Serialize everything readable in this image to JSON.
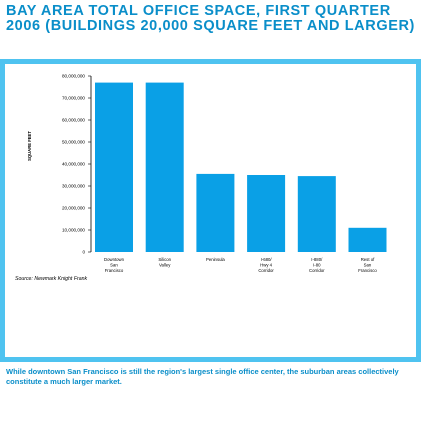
{
  "title": "BAY AREA TOTAL OFFICE SPACE, FIRST QUARTER 2006 (BUILDINGS 20,000 SQUARE FEET AND LARGER)",
  "caption": "While downtown San Francisco is still the region's largest single office center, the suburban areas collectively constitute a much larger market.",
  "colors": {
    "accent": "#0a8ec9",
    "bar": "#0aa0e6",
    "frame": "#4fc3f0"
  },
  "chart_data": {
    "type": "bar",
    "ylabel": "SQUARE FEET",
    "ylim": [
      0,
      80000000
    ],
    "yticks": [
      0,
      10000000,
      20000000,
      30000000,
      40000000,
      50000000,
      60000000,
      70000000,
      80000000
    ],
    "ytick_labels": [
      "0",
      "10,000,000",
      "20,000,000",
      "30,000,000",
      "40,000,000",
      "50,000,000",
      "60,000,000",
      "70,000,000",
      "80,000,000"
    ],
    "categories": [
      [
        "Downtown",
        "San",
        "Francisco"
      ],
      [
        "Silicon",
        "Valley"
      ],
      [
        "Peninsula"
      ],
      [
        "I-680/",
        "Hwy 4",
        "Corridor"
      ],
      [
        "I-880/",
        "I-80",
        "Corridor"
      ],
      [
        "Rest of",
        "San",
        "Francisco"
      ]
    ],
    "values": [
      77000000,
      77000000,
      35500000,
      35000000,
      34500000,
      11000000
    ],
    "source": "Source: Newmark Knight Frank",
    "grid": false,
    "legend": "none"
  }
}
